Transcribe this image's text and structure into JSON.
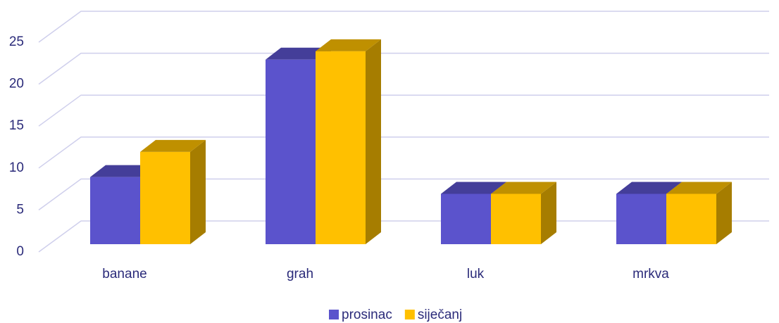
{
  "chart_data": {
    "type": "bar3d",
    "categories": [
      "banane",
      "grah",
      "luk",
      "mrkva"
    ],
    "series": [
      {
        "name": "prosinac",
        "color": "#5b53cc",
        "values": [
          8,
          22,
          6,
          6
        ]
      },
      {
        "name": "siječanj",
        "color": "#ffc000",
        "values": [
          11,
          23,
          6,
          6
        ]
      }
    ],
    "ylim": [
      0,
      25
    ],
    "yticks": [
      0,
      5,
      10,
      15,
      20,
      25
    ],
    "grid": true,
    "legend": "bottom"
  }
}
